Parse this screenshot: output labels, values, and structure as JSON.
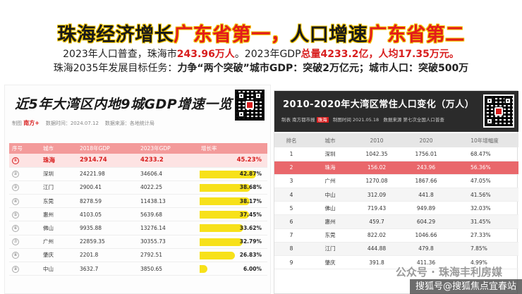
{
  "headline": {
    "part1": "珠海经济增长",
    "part2": "广东省第一，",
    "part3": "人口增速",
    "part4": "广东省第二"
  },
  "subline1": {
    "a": "2023年人口普查，珠海市",
    "b": "243.96万人",
    "c": "。2023年GDP",
    "d": "总量4233.2亿",
    "e": "，",
    "f": "人均17.35万元。"
  },
  "subline2": {
    "a": "珠海2035年发展目标任务：",
    "b": "力争“两个突破”城市GDP：突破2万亿元；城市人口：突破5",
    "c": "00万"
  },
  "left": {
    "title": "近5年大湾区内地9城GDP增速一览",
    "meta_prefix": "制图",
    "meta_logo": "南方+",
    "meta_date": "数据时间：2024.07.12",
    "meta_source": "数据来源：各地统计局",
    "headers": [
      "序号",
      "城市",
      "2018年GDP",
      "2023年GDP",
      "增长率"
    ],
    "rows": [
      {
        "rank": "①",
        "city": "珠海",
        "gdp2018": "2914.74",
        "gdp2023": "4233.2",
        "growth": "45.23%",
        "growth_value": 45.23
      },
      {
        "rank": "②",
        "city": "深圳",
        "gdp2018": "24221.98",
        "gdp2023": "34606.4",
        "growth": "42.87%",
        "growth_value": 42.87
      },
      {
        "rank": "③",
        "city": "江门",
        "gdp2018": "2900.41",
        "gdp2023": "4022.25",
        "growth": "38.68%",
        "growth_value": 38.68
      },
      {
        "rank": "④",
        "city": "东莞",
        "gdp2018": "8278.59",
        "gdp2023": "11438.13",
        "growth": "38.17%",
        "growth_value": 38.17
      },
      {
        "rank": "⑤",
        "city": "惠州",
        "gdp2018": "4103.05",
        "gdp2023": "5639.68",
        "growth": "37.45%",
        "growth_value": 37.45
      },
      {
        "rank": "⑥",
        "city": "佛山",
        "gdp2018": "9935.88",
        "gdp2023": "13276.14",
        "growth": "33.62%",
        "growth_value": 33.62
      },
      {
        "rank": "⑦",
        "city": "广州",
        "gdp2018": "22859.35",
        "gdp2023": "30355.73",
        "growth": "32.79%",
        "growth_value": 32.79
      },
      {
        "rank": "⑧",
        "city": "肇庆",
        "gdp2018": "2201.8",
        "gdp2023": "2792.51",
        "growth": "26.83%",
        "growth_value": 26.83
      },
      {
        "rank": "⑨",
        "city": "中山",
        "gdp2018": "3632.7",
        "gdp2023": "3850.65",
        "growth": "6.00%",
        "growth_value": 6.0
      }
    ]
  },
  "right": {
    "title": "2010-2020年大湾区常住人口变化（万人）",
    "meta_prefix": "制表",
    "meta_logo": "南方都市报",
    "meta_tag": "珠海",
    "meta_date": "制图时间 2021.05.18",
    "meta_source": "数据来源 第七次全国人口普查",
    "headers": [
      "排名",
      "城市",
      "2010",
      "2020",
      "10年增幅度"
    ],
    "rows": [
      {
        "rank": "1",
        "city": "深圳",
        "y2010": "1042.35",
        "y2020": "1756.01",
        "change": "68.47%"
      },
      {
        "rank": "2",
        "city": "珠海",
        "y2010": "156.02",
        "y2020": "243.96",
        "change": "56.36%"
      },
      {
        "rank": "3",
        "city": "广州",
        "y2010": "1270.08",
        "y2020": "1867.66",
        "change": "47.05%"
      },
      {
        "rank": "4",
        "city": "中山",
        "y2010": "312.09",
        "y2020": "441.8",
        "change": "41.56%"
      },
      {
        "rank": "5",
        "city": "佛山",
        "y2010": "719.43",
        "y2020": "949.89",
        "change": "32.03%"
      },
      {
        "rank": "6",
        "city": "惠州",
        "y2010": "459.7",
        "y2020": "604.29",
        "change": "31.45%"
      },
      {
        "rank": "7",
        "city": "东莞",
        "y2010": "822.02",
        "y2020": "1046.66",
        "change": "27.33%"
      },
      {
        "rank": "8",
        "city": "江门",
        "y2010": "444.88",
        "y2020": "479.8",
        "change": "7.85%"
      },
      {
        "rank": "9",
        "city": "肇庆",
        "y2010": "391.8",
        "y2020": "411.36",
        "change": "4.99%"
      }
    ]
  },
  "watermark1": "公众号 · 珠海丰利房媒",
  "watermark2": "搜狐号@搜狐焦点宜春站",
  "colors": {
    "accent_red": "#e31b1b",
    "highlight_yellow": "#f2c400",
    "bar_yellow": "#f7e11a",
    "left_header_pink": "#f39a9a",
    "right_highlight": "#e9676b",
    "right_header_dark": "#2b2b2b"
  }
}
